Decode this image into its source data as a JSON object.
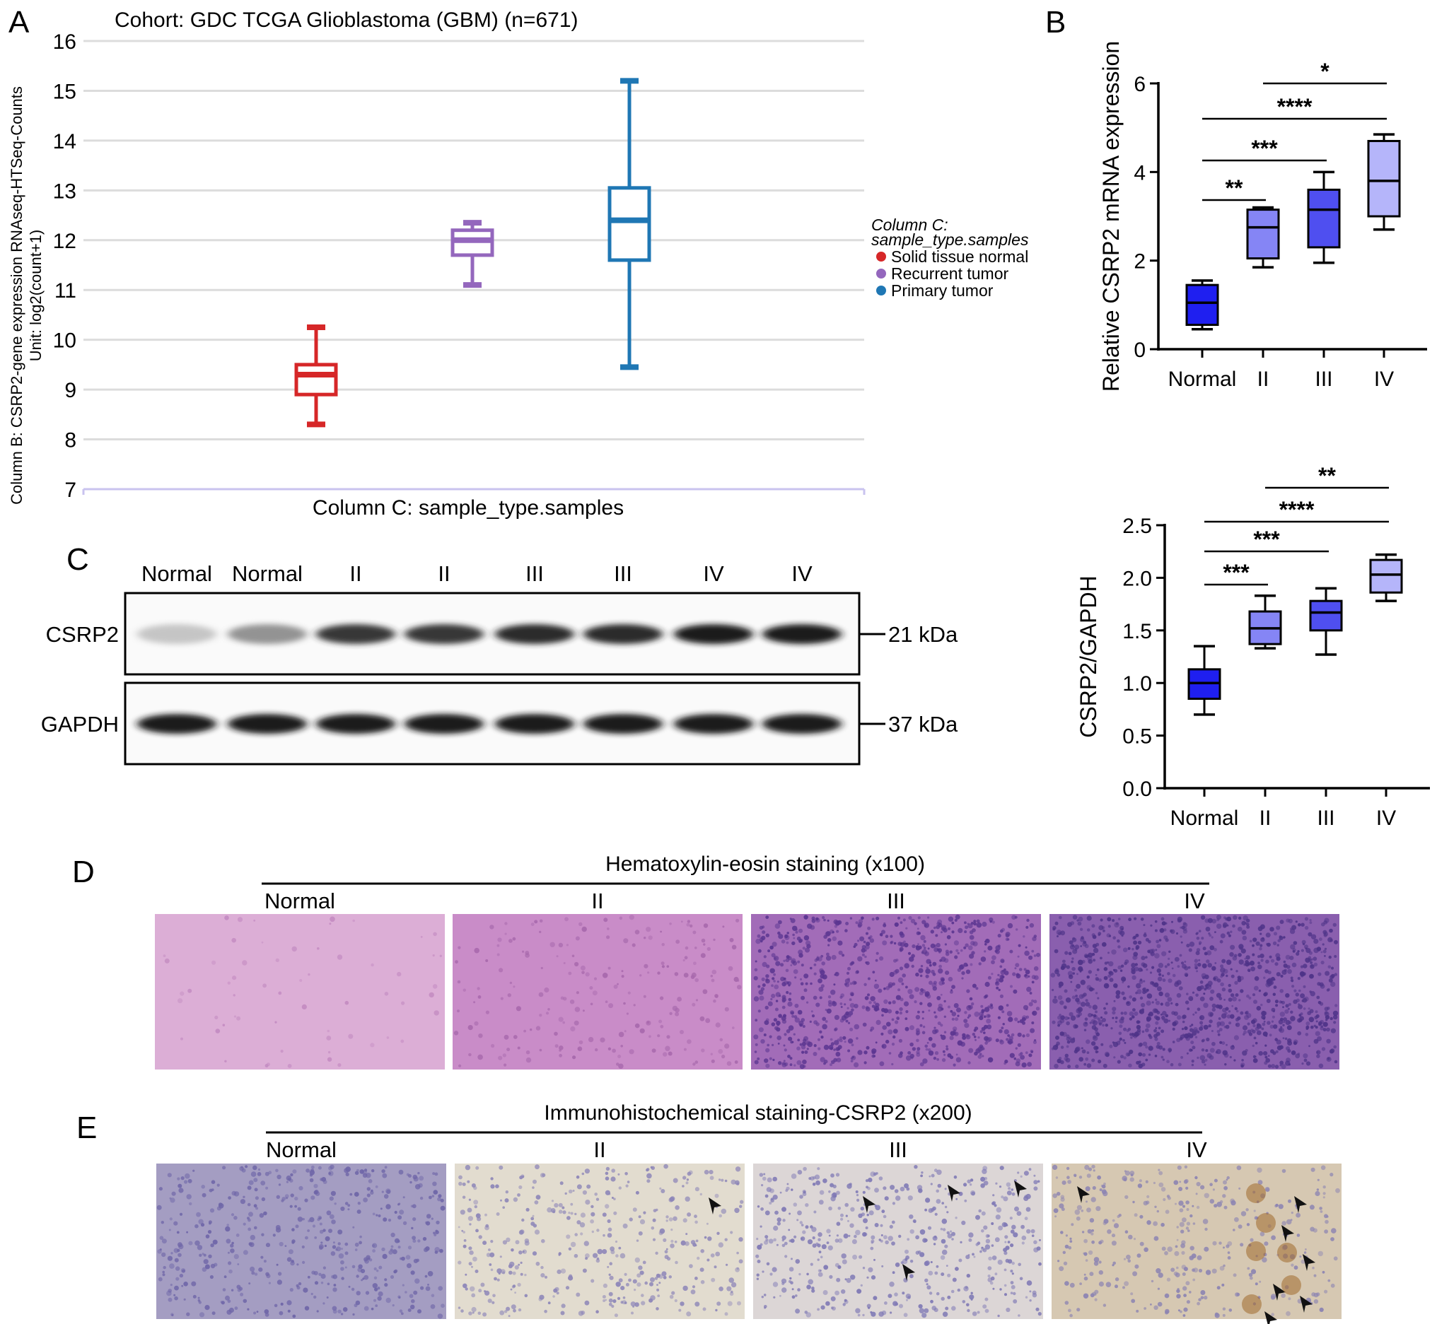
{
  "panels": {
    "A": {
      "letter": "A",
      "chart_data": {
        "type": "box",
        "title": "Cohort: GDC TCGA Glioblastoma (GBM) (n=671)",
        "ylabel_line1": "Column B: CSRP2-gene expression RNAseq-HTSeq-Counts",
        "ylabel_line2": "Unit: log2(count+1)",
        "xlabel": "Column C: sample_type.samples",
        "ylim": [
          7,
          16
        ],
        "yticks": [
          7,
          8,
          9,
          10,
          11,
          12,
          13,
          14,
          15,
          16
        ],
        "grid": true,
        "legend_placement": "right",
        "legend_title_line1": "Column C:",
        "legend_title_line2": "sample_type.samples",
        "series": [
          {
            "name": "Solid tissue normal",
            "color": "#d62728",
            "min": 8.3,
            "q1": 8.9,
            "median": 9.3,
            "q3": 9.5,
            "max": 10.25
          },
          {
            "name": "Recurrent tumor",
            "color": "#9467bd",
            "min": 11.1,
            "q1": 11.7,
            "median": 12.0,
            "q3": 12.2,
            "max": 12.35
          },
          {
            "name": "Primary tumor",
            "color": "#1f77b4",
            "min": 9.45,
            "q1": 11.6,
            "median": 12.4,
            "q3": 13.05,
            "max": 15.2
          }
        ]
      }
    },
    "B": {
      "letter": "B",
      "chart_data": [
        {
          "type": "box",
          "ylabel": "Relative CSRP2 mRNA expression",
          "ylim": [
            0,
            6
          ],
          "yticks": [
            "0",
            "2",
            "4",
            "6"
          ],
          "categories": [
            "Normal",
            "II",
            "III",
            "IV"
          ],
          "boxes": [
            {
              "min": 0.45,
              "q1": 0.55,
              "median": 1.05,
              "q3": 1.45,
              "max": 1.55,
              "color": "#1f1ff0"
            },
            {
              "min": 1.85,
              "q1": 2.05,
              "median": 2.75,
              "q3": 3.15,
              "max": 3.2,
              "color": "#8585f5"
            },
            {
              "min": 1.95,
              "q1": 2.3,
              "median": 3.15,
              "q3": 3.6,
              "max": 4.0,
              "color": "#4f4ff0"
            },
            {
              "min": 2.7,
              "q1": 3.0,
              "median": 3.8,
              "q3": 4.7,
              "max": 4.85,
              "color": "#b5b5fa"
            }
          ],
          "significance": [
            {
              "from": 0,
              "to": 1,
              "label": "**",
              "level": 3.4
            },
            {
              "from": 0,
              "to": 2,
              "label": "***",
              "level": 4.4
            },
            {
              "from": 0,
              "to": 3,
              "label": "****",
              "level": 5.2
            },
            {
              "from": 1,
              "to": 3,
              "label": "*",
              "level": 6.0
            }
          ]
        },
        {
          "type": "box",
          "ylabel": "CSRP2/GAPDH",
          "ylim": [
            0,
            2.5
          ],
          "yticks": [
            "0.0",
            "0.5",
            "1.0",
            "1.5",
            "2.0",
            "2.5"
          ],
          "categories": [
            "Normal",
            "II",
            "III",
            "IV"
          ],
          "boxes": [
            {
              "min": 0.7,
              "q1": 0.85,
              "median": 1.0,
              "q3": 1.13,
              "max": 1.35,
              "color": "#1f1ff0"
            },
            {
              "min": 1.33,
              "q1": 1.37,
              "median": 1.52,
              "q3": 1.68,
              "max": 1.83,
              "color": "#8585f5"
            },
            {
              "min": 1.27,
              "q1": 1.5,
              "median": 1.67,
              "q3": 1.78,
              "max": 1.9,
              "color": "#4f4ff0"
            },
            {
              "min": 1.78,
              "q1": 1.86,
              "median": 2.03,
              "q3": 2.17,
              "max": 2.22,
              "color": "#b5b5fa"
            }
          ],
          "significance": [
            {
              "from": 0,
              "to": 1,
              "label": "***",
              "level": 1.9
            },
            {
              "from": 0,
              "to": 2,
              "label": "***",
              "level": 2.2
            },
            {
              "from": 0,
              "to": 3,
              "label": "****",
              "level": 2.5
            },
            {
              "from": 1,
              "to": 3,
              "label": "**",
              "level": 2.85
            }
          ]
        }
      ]
    },
    "C": {
      "letter": "C",
      "lanes": [
        "Normal",
        "Normal",
        "II",
        "II",
        "III",
        "III",
        "IV",
        "IV"
      ],
      "blots": [
        {
          "protein": "CSRP2",
          "size": "21 kDa",
          "band_intensity": [
            0.25,
            0.5,
            0.85,
            0.85,
            0.9,
            0.9,
            0.95,
            0.95
          ]
        },
        {
          "protein": "GAPDH",
          "size": "37 kDa",
          "band_intensity": [
            0.95,
            0.95,
            0.95,
            0.95,
            0.95,
            0.95,
            0.95,
            0.95
          ]
        }
      ]
    },
    "D": {
      "letter": "D",
      "title": "Hematoxylin-eosin staining (x100)",
      "labels": [
        "Normal",
        "II",
        "III",
        "IV"
      ],
      "tiles": [
        {
          "base": "#dcaed6",
          "dot": "#c48cc2"
        },
        {
          "base": "#c98cc8",
          "dot": "#a869ad"
        },
        {
          "base": "#a26cb8",
          "dot": "#5a3590"
        },
        {
          "base": "#8a5fae",
          "dot": "#4e3388"
        }
      ]
    },
    "E": {
      "letter": "E",
      "title": "Immunohistochemical staining-CSRP2 (x200)",
      "labels": [
        "Normal",
        "II",
        "III",
        "IV"
      ],
      "tiles": [
        {
          "base": "#a49dc2",
          "dot": "#6f66a8"
        },
        {
          "base": "#e2dccf",
          "dot": "#8d86b8"
        },
        {
          "base": "#dcd6d6",
          "dot": "#7f79b5"
        },
        {
          "base": "#d6c8b2",
          "dot": "#8c84b2"
        }
      ]
    }
  }
}
